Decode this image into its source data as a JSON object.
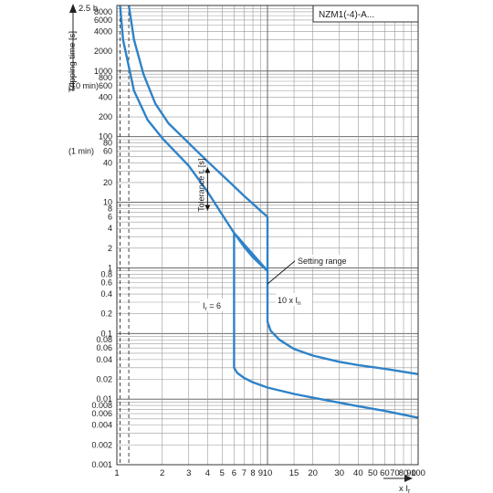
{
  "chart_data": {
    "type": "line",
    "scale": {
      "x": "log",
      "y": "log"
    },
    "xlim": [
      1,
      100
    ],
    "ylim": [
      0.001,
      10000
    ],
    "grid": true,
    "label_box": "NZM1(-4)-A...",
    "y_top_label": "2.5 h",
    "ylabel": "Tripping time [s]",
    "ylabel_alt": "(10 min)",
    "xlabel": "x I",
    "xlabel_sub": "r",
    "y_ticks": [
      {
        "v": 8000,
        "t": "8000"
      },
      {
        "v": 6000,
        "t": "6000"
      },
      {
        "v": 4000,
        "t": "4000"
      },
      {
        "v": 2000,
        "t": "2000"
      },
      {
        "v": 1000,
        "t": "1000"
      },
      {
        "v": 800,
        "t": "800"
      },
      {
        "v": 600,
        "t": "600"
      },
      {
        "v": 400,
        "t": "400"
      },
      {
        "v": 200,
        "t": "200"
      },
      {
        "v": 100,
        "t": "100"
      },
      {
        "v": 80,
        "t": "80"
      },
      {
        "v": 60,
        "t": "60"
      },
      {
        "v": 40,
        "t": "40"
      },
      {
        "v": 20,
        "t": "20"
      },
      {
        "v": 10,
        "t": "10"
      },
      {
        "v": 8,
        "t": "8"
      },
      {
        "v": 6,
        "t": "6"
      },
      {
        "v": 4,
        "t": "4"
      },
      {
        "v": 2,
        "t": "2"
      },
      {
        "v": 1,
        "t": "1"
      },
      {
        "v": 0.8,
        "t": "0.8"
      },
      {
        "v": 0.6,
        "t": "0.6"
      },
      {
        "v": 0.4,
        "t": "0.4"
      },
      {
        "v": 0.2,
        "t": "0.2"
      },
      {
        "v": 0.1,
        "t": "0.1"
      },
      {
        "v": 0.08,
        "t": "0.08"
      },
      {
        "v": 0.06,
        "t": "0.06"
      },
      {
        "v": 0.04,
        "t": "0.04"
      },
      {
        "v": 0.02,
        "t": "0.02"
      },
      {
        "v": 0.01,
        "t": "0.01"
      },
      {
        "v": 0.008,
        "t": "0.008"
      },
      {
        "v": 0.006,
        "t": "0.006"
      },
      {
        "v": 0.004,
        "t": "0.004"
      },
      {
        "v": 0.002,
        "t": "0.002"
      },
      {
        "v": 0.001,
        "t": "0.001"
      }
    ],
    "y_side_labels": [
      {
        "v": 600,
        "t": "(10 min)"
      },
      {
        "v": 60,
        "t": "(1 min)"
      }
    ],
    "x_ticks": [
      {
        "v": 1,
        "t": "1"
      },
      {
        "v": 2,
        "t": "2"
      },
      {
        "v": 3,
        "t": "3"
      },
      {
        "v": 4,
        "t": "4"
      },
      {
        "v": 5,
        "t": "5"
      },
      {
        "v": 6,
        "t": "6"
      },
      {
        "v": 7,
        "t": "7"
      },
      {
        "v": 8,
        "t": "8"
      },
      {
        "v": 9,
        "t": "9"
      },
      {
        "v": 10,
        "t": "10"
      },
      {
        "v": 15,
        "t": "15"
      },
      {
        "v": 20,
        "t": "20"
      },
      {
        "v": 30,
        "t": "30"
      },
      {
        "v": 40,
        "t": "40"
      },
      {
        "v": 50,
        "t": "50"
      },
      {
        "v": 60,
        "t": "60"
      },
      {
        "v": 70,
        "t": "70"
      },
      {
        "v": 80,
        "t": "80"
      },
      {
        "v": 90,
        "t": "90"
      },
      {
        "v": 100,
        "t": "100"
      }
    ],
    "dashed_x": [
      1.05,
      1.2
    ],
    "series": [
      {
        "curve": "upper",
        "color": "#2e82c8",
        "points": [
          [
            1.2,
            10000
          ],
          [
            1.3,
            3000
          ],
          [
            1.5,
            900
          ],
          [
            1.8,
            320
          ],
          [
            2.2,
            160
          ],
          [
            3,
            80
          ],
          [
            4,
            42
          ],
          [
            5,
            26
          ],
          [
            6,
            17.5
          ],
          [
            7,
            12.5
          ],
          [
            8,
            9.5
          ],
          [
            9,
            7.4
          ],
          [
            10,
            6.0
          ],
          [
            10,
            0.15
          ],
          [
            10.5,
            0.11
          ],
          [
            12,
            0.08
          ],
          [
            15,
            0.058
          ],
          [
            20,
            0.046
          ],
          [
            30,
            0.037
          ],
          [
            40,
            0.033
          ],
          [
            60,
            0.029
          ],
          [
            100,
            0.024
          ]
        ]
      },
      {
        "curve": "lower",
        "color": "#2e82c8",
        "points": [
          [
            1.05,
            10000
          ],
          [
            1.1,
            3000
          ],
          [
            1.3,
            500
          ],
          [
            1.6,
            180
          ],
          [
            2,
            95
          ],
          [
            3,
            36
          ],
          [
            4,
            14.5
          ],
          [
            5,
            6.5
          ],
          [
            6,
            3.4
          ],
          [
            7,
            2.1
          ],
          [
            8,
            1.45
          ],
          [
            9,
            1.12
          ],
          [
            10,
            0.9
          ],
          [
            6,
            3.4
          ],
          [
            6,
            0.03
          ],
          [
            6.3,
            0.025
          ],
          [
            7,
            0.021
          ],
          [
            8,
            0.018
          ],
          [
            10,
            0.015
          ],
          [
            15,
            0.012
          ],
          [
            20,
            0.0105
          ],
          [
            30,
            0.0088
          ],
          [
            40,
            0.0078
          ],
          [
            60,
            0.0066
          ],
          [
            100,
            0.0052
          ]
        ]
      }
    ],
    "annotations": {
      "tolerance": "Tolerance t",
      "tolerance_sub": "r",
      "tolerance_unit": "[s]",
      "setting_range": "Setting range",
      "ir_label": "I",
      "ir_sub": "r",
      "ir_value": "= 6",
      "in_label": "10 x I",
      "in_sub": "n"
    }
  }
}
